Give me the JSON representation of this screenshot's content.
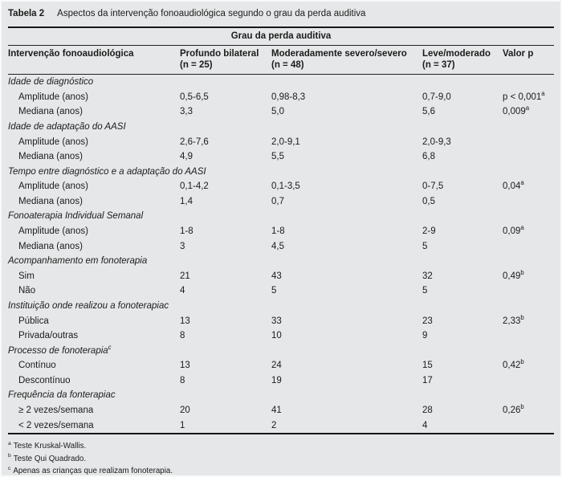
{
  "table": {
    "title_label": "Tabela 2",
    "title_text": "Aspectos da intervenção fonoaudiológica segundo o grau da perda auditiva",
    "group_header": "Grau da perda auditiva",
    "columns": [
      {
        "label": "Intervenção fonoaudiológica",
        "sub": ""
      },
      {
        "label": "Profundo bilateral",
        "sub": "(n = 25)"
      },
      {
        "label": "Moderadamente severo/severo",
        "sub": "(n = 48)"
      },
      {
        "label": "Leve/moderado",
        "sub": "(n = 37)"
      },
      {
        "label": "Valor p",
        "sub": ""
      }
    ],
    "rows": [
      {
        "type": "section",
        "label": "Idade de diagnóstico",
        "label_sup": ""
      },
      {
        "type": "data",
        "label": "Amplitude (anos)",
        "c1": "0,5-6,5",
        "c2": "0,98-8,3",
        "c3": "0,7-9,0",
        "p": "p < 0,001",
        "p_sup": "a"
      },
      {
        "type": "data",
        "label": "Mediana (anos)",
        "c1": "3,3",
        "c2": "5,0",
        "c3": "5,6",
        "p": "0,009",
        "p_sup": "a"
      },
      {
        "type": "section",
        "label": "Idade de adaptação do AASI",
        "label_sup": ""
      },
      {
        "type": "data",
        "label": "Amplitude (anos)",
        "c1": "2,6-7,6",
        "c2": "2,0-9,1",
        "c3": "2,0-9,3",
        "p": "",
        "p_sup": ""
      },
      {
        "type": "data",
        "label": "Mediana (anos)",
        "c1": "4,9",
        "c2": "5,5",
        "c3": "6,8",
        "p": "",
        "p_sup": ""
      },
      {
        "type": "section",
        "label": "Tempo entre diagnóstico e a adaptação do AASI",
        "label_sup": ""
      },
      {
        "type": "data",
        "label": "Amplitude (anos)",
        "c1": "0,1-4,2",
        "c2": "0,1-3,5",
        "c3": "0-7,5",
        "p": "0,04",
        "p_sup": "a"
      },
      {
        "type": "data",
        "label": "Mediana (anos)",
        "c1": "1,4",
        "c2": "0,7",
        "c3": "0,5",
        "p": "",
        "p_sup": ""
      },
      {
        "type": "section",
        "label": "Fonoaterapia Individual Semanal",
        "label_sup": ""
      },
      {
        "type": "data",
        "label": "Amplitude (anos)",
        "c1": "1-8",
        "c2": "1-8",
        "c3": "2-9",
        "p": "0,09",
        "p_sup": "a"
      },
      {
        "type": "data",
        "label": "Mediana (anos)",
        "c1": "3",
        "c2": "4,5",
        "c3": "5",
        "p": "",
        "p_sup": ""
      },
      {
        "type": "section",
        "label": "Acompanhamento em fonoterapia",
        "label_sup": ""
      },
      {
        "type": "data",
        "label": "Sim",
        "c1": "21",
        "c2": "43",
        "c3": "32",
        "p": "0,49",
        "p_sup": "b"
      },
      {
        "type": "data",
        "label": "Não",
        "c1": "4",
        "c2": "5",
        "c3": "5",
        "p": "",
        "p_sup": ""
      },
      {
        "type": "section",
        "label": "Instituição onde realizou a fonoterapiac",
        "label_sup": ""
      },
      {
        "type": "data",
        "label": "Pública",
        "c1": "13",
        "c2": "33",
        "c3": "23",
        "p": "2,33",
        "p_sup": "b"
      },
      {
        "type": "data",
        "label": "Privada/outras",
        "c1": "8",
        "c2": "10",
        "c3": "9",
        "p": "",
        "p_sup": ""
      },
      {
        "type": "section",
        "label": "Processo de fonoterapia",
        "label_sup": "c"
      },
      {
        "type": "data",
        "label": "Contínuo",
        "c1": "13",
        "c2": "24",
        "c3": "15",
        "p": "0,42",
        "p_sup": "b"
      },
      {
        "type": "data",
        "label": "Descontínuo",
        "c1": "8",
        "c2": "19",
        "c3": "17",
        "p": "",
        "p_sup": ""
      },
      {
        "type": "section",
        "label": "Frequência da fonterapiac",
        "label_sup": ""
      },
      {
        "type": "data",
        "label": "≥ 2 vezes/semana",
        "c1": "20",
        "c2": "41",
        "c3": "28",
        "p": "0,26",
        "p_sup": "b"
      },
      {
        "type": "data",
        "label": "< 2 vezes/semana",
        "c1": "1",
        "c2": "2",
        "c3": "4",
        "p": "",
        "p_sup": ""
      }
    ],
    "footnotes": [
      {
        "sup": "a",
        "text": "Teste Kruskal-Wallis."
      },
      {
        "sup": "b",
        "text": "Teste Qui Quadrado."
      },
      {
        "sup": "c",
        "text": "Apenas as crianças que realizam fonoterapia."
      }
    ]
  }
}
